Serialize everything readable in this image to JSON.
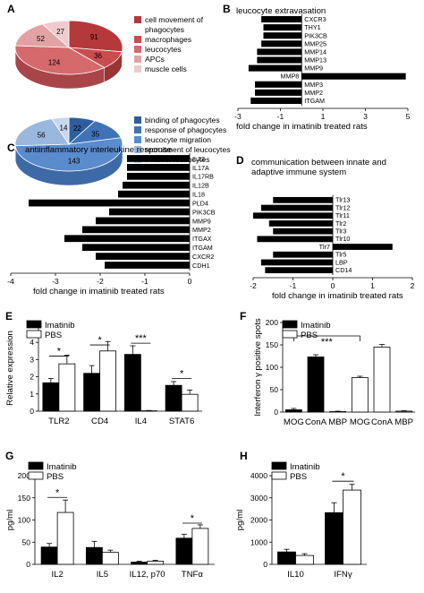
{
  "panels": [
    {
      "letter": "A",
      "type": "pie",
      "pies": [
        {
          "slices": [
            {
              "label": "cell movement of phagocytes",
              "value": 91,
              "color": "#b5383b"
            },
            {
              "label": "macrophages",
              "value": 36,
              "color": "#c94c4f"
            },
            {
              "label": "leucocytes",
              "value": 124,
              "color": "#d5696b"
            },
            {
              "label": "APCs",
              "value": 52,
              "color": "#e2a2a4"
            },
            {
              "label": "muscle cells",
              "value": 27,
              "color": "#efcbcc"
            }
          ],
          "legend": [
            "cell movement of",
            "phagocytes",
            "macrophages",
            "leucocytes",
            "APCs",
            "muscle cells"
          ]
        },
        {
          "slices": [
            {
              "label": "binding of phagocytes",
              "value": 22,
              "color": "#2e5e9e"
            },
            {
              "label": "response of phagocytes",
              "value": 35,
              "color": "#3f73b6"
            },
            {
              "label": "leucocyte migration",
              "value": 143,
              "color": "#5a8bcc"
            },
            {
              "label": "recruitment of leucocytes",
              "value": 56,
              "color": "#9ab7de"
            },
            {
              "label": "influx of leucocytes",
              "value": 14,
              "color": "#c7d7ee"
            }
          ],
          "legend": [
            "binding of phagocytes",
            "response of phagocytes",
            "leucocyte migration",
            "recruitment of leucocytes",
            "influx of leucocytes"
          ]
        }
      ]
    },
    {
      "letter": "B",
      "type": "hbar",
      "title": "leucocyte extravasation",
      "xlabel": "fold change in imatinib treated rats",
      "xlim": [
        -3,
        5
      ],
      "xticks": [
        "-3",
        "-1",
        "1",
        "3",
        "5"
      ],
      "categories": [
        "CXCR3",
        "THY1",
        "PIK3CB",
        "MMP25",
        "MMP14",
        "MMP13",
        "MMP9",
        "MMP8",
        "MMP3",
        "MMP2",
        "ITGAM"
      ],
      "values": [
        -1.9,
        -1.8,
        -1.8,
        -1.9,
        -2.1,
        -2.1,
        -2.5,
        4.9,
        -2.2,
        -2.2,
        -2.4
      ]
    },
    {
      "letter": "C",
      "type": "hbar",
      "title": "antiinflammatory interleukine response",
      "xlabel": "fold change in imatinib treated rats",
      "xlim": [
        -4,
        0
      ],
      "xticks": [
        "-4",
        "-3",
        "-2",
        "-1",
        "0"
      ],
      "categories": [
        "IL22",
        "IL17A",
        "IL17RB",
        "IL12B",
        "IL18",
        "PLD4",
        "PIK3CB",
        "MMP9",
        "MMP2",
        "ITGAX",
        "ITGAM",
        "CXCR2",
        "CDH1"
      ],
      "values": [
        -1.4,
        -1.4,
        -1.4,
        -1.5,
        -1.6,
        -3.6,
        -1.8,
        -2.1,
        -2.4,
        -2.8,
        -2.4,
        -2.1,
        -1.9
      ]
    },
    {
      "letter": "D",
      "type": "hbar",
      "title": "communication between innate and\nadaptive immune system",
      "xlabel": "fold change in imatinib treated rats",
      "xlim": [
        -2,
        2
      ],
      "xticks": [
        "-2",
        "-1",
        "0",
        "1",
        "2"
      ],
      "categories": [
        "Tlr13",
        "Tlr12",
        "Tlr11",
        "Tlr2",
        "Tlr3",
        "Tlr10",
        "Tlr7",
        "Tlr5",
        "LBP",
        "CD14"
      ],
      "values": [
        -1.5,
        -1.8,
        -2.0,
        -1.6,
        -1.5,
        -1.9,
        1.5,
        -1.5,
        -1.8,
        -1.7
      ]
    },
    {
      "letter": "E",
      "type": "bar",
      "ylabel": "Relative expression",
      "ylim": [
        0,
        5
      ],
      "yticks": [
        "0",
        "1",
        "2",
        "3",
        "4",
        "5"
      ],
      "categories": [
        "TLR2",
        "CD4",
        "IL4",
        "STAT6"
      ],
      "series": [
        {
          "name": "Imatinib",
          "values": [
            1.65,
            2.2,
            3.3,
            1.5
          ],
          "errors": [
            0.25,
            0.45,
            0.5,
            0.22
          ],
          "color": "#000000"
        },
        {
          "name": "PBS",
          "values": [
            2.75,
            3.5,
            0.02,
            0.98
          ],
          "errors": [
            0.5,
            0.55,
            0.02,
            0.25
          ],
          "color": "#ffffff"
        }
      ],
      "sig": [
        {
          "cat": 0,
          "label": "*",
          "y": 3.2
        },
        {
          "cat": 1,
          "label": "*",
          "y": 3.85
        },
        {
          "cat": 2,
          "label": "***",
          "y": 3.95
        },
        {
          "cat": 3,
          "label": "*",
          "y": 1.9
        }
      ]
    },
    {
      "letter": "F",
      "type": "bar",
      "ylabel": "Interferon γ positive spots",
      "ylim": [
        0,
        200
      ],
      "yticks": [
        "0",
        "50",
        "100",
        "150",
        "200"
      ],
      "categories": [
        "MOG",
        "ConA",
        "MBP"
      ],
      "groups": [
        {
          "name": "Imatinib",
          "color": "#000000",
          "values": [
            5,
            123,
            1
          ],
          "errors": [
            3,
            5,
            1
          ]
        },
        {
          "name": "PBS",
          "color": "#ffffff",
          "values": [
            77,
            145,
            2
          ],
          "errors": [
            3,
            6,
            1
          ]
        }
      ],
      "sig": {
        "label": "***",
        "from": 0,
        "to": 3,
        "y": 170
      }
    },
    {
      "letter": "G",
      "type": "bar",
      "ylabel": "pg/ml",
      "ylim": [
        0,
        200
      ],
      "yticks": [
        "0",
        "50",
        "100",
        "150",
        "200"
      ],
      "categories": [
        "IL2",
        "IL5",
        "IL12, p70",
        "TNFα"
      ],
      "series": [
        {
          "name": "Imatinib",
          "values": [
            39,
            38,
            5,
            59
          ],
          "errors": [
            8,
            14,
            2,
            9
          ],
          "color": "#000000"
        },
        {
          "name": "PBS",
          "values": [
            117,
            27,
            7,
            81
          ],
          "errors": [
            28,
            5,
            2,
            8
          ],
          "color": "#ffffff"
        }
      ],
      "sig": [
        {
          "cat": 0,
          "label": "*",
          "y": 151
        },
        {
          "cat": 3,
          "label": "*",
          "y": 93
        }
      ]
    },
    {
      "letter": "H",
      "type": "bar",
      "ylabel": "pg/ml",
      "ylim": [
        0,
        4000
      ],
      "yticks": [
        "0",
        "1000",
        "2000",
        "3000",
        "4000"
      ],
      "categories": [
        "IL10",
        "IFNγ"
      ],
      "series": [
        {
          "name": "Imatinib",
          "values": [
            560,
            2330
          ],
          "errors": [
            120,
            450
          ],
          "color": "#000000"
        },
        {
          "name": "PBS",
          "values": [
            400,
            3350
          ],
          "errors": [
            80,
            260
          ],
          "color": "#ffffff"
        }
      ],
      "sig": [
        {
          "cat": 1,
          "label": "*",
          "y": 3750
        }
      ]
    }
  ]
}
